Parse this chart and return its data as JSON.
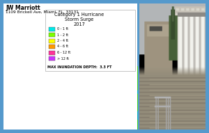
{
  "title_line1": "JW Marriott",
  "title_line2": "1109 Brickell Ave, Miami, FL, 33131",
  "legend_title_lines": [
    "Category 1 Hurricane",
    "Storm Surge",
    "2017"
  ],
  "legend_labels": [
    "0 - 1 ft",
    "1 - 2 ft",
    "2 - 4 ft",
    "4 - 6 ft",
    "6 - 12 ft",
    "> 12 ft"
  ],
  "legend_colors": [
    "#00e8e8",
    "#7dff00",
    "#ffff00",
    "#ff9900",
    "#ff3399",
    "#cc33ff"
  ],
  "max_depth_label": "MAX INUNDATION DEPTH:  3.3 FT",
  "border_color": "#5599cc",
  "bg_color": "#ffffff"
}
